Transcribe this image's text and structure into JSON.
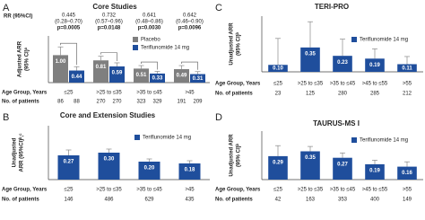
{
  "chart_data": [
    {
      "type": "bar",
      "panel": "A",
      "title": "Core Studies",
      "y_label": [
        "Adjusted ARR",
        "(95% CI)ᵃ"
      ],
      "annotation_label": "RR (95%CI)",
      "annotations": [
        {
          "rr": "0.445",
          "ci": "(0.28–0.70)",
          "p": "p=0.0005"
        },
        {
          "rr": "0.732",
          "ci": "(0.57–0.96)",
          "p": "p=0.0148"
        },
        {
          "rr": "0.641",
          "ci": "(0.48–0.86)",
          "p": "p=0.0030"
        },
        {
          "rr": "0.642",
          "ci": "(0.46–0.90)",
          "p": "p=0.0096"
        }
      ],
      "row_labels": [
        "Age Group, Years",
        "No. of patients"
      ],
      "categories": [
        "≤25",
        ">25 to ≤35",
        ">35 to ≤45",
        ">45"
      ],
      "ylim": [
        0,
        1.7
      ],
      "series": [
        {
          "name": "Placebo",
          "color": "#7f7f7f",
          "values": [
            1.0,
            0.81,
            0.51,
            0.49
          ],
          "value_labels": [
            "1.00",
            "0.81",
            "0.51",
            "0.49"
          ],
          "ci_upper": [
            1.3,
            0.96,
            0.62,
            0.62
          ],
          "patients": [
            86,
            270,
            323,
            191
          ],
          "patients_color": "#333333"
        },
        {
          "name": "Teriflunomide 14 mg",
          "color": "#1f4e9c",
          "values": [
            0.44,
            0.59,
            0.33,
            0.31
          ],
          "value_labels": [
            "0.44",
            "0.59",
            "0.33",
            "0.31"
          ],
          "ci_upper": [
            0.58,
            0.72,
            0.41,
            0.4
          ],
          "patients": [
            88,
            270,
            329,
            209
          ],
          "patients_color": "#1f4e9c"
        }
      ]
    },
    {
      "type": "bar",
      "panel": "B",
      "title": "Core and Extension Studies",
      "y_label": [
        "Unadjusted",
        "ARR (95%CI)ᵇ,ᶜ"
      ],
      "row_labels": [
        "Age Group, Years",
        "No. of patients"
      ],
      "categories": [
        "≤25",
        ">25 to ≤35",
        ">35 to ≤45",
        ">45"
      ],
      "ylim": [
        0,
        0.6
      ],
      "series": [
        {
          "name": "Teriflunomide 14 mg",
          "color": "#1f4e9c",
          "values": [
            0.27,
            0.3,
            0.2,
            0.18
          ],
          "value_labels": [
            "0.27",
            "0.30",
            "0.20",
            "0.18"
          ],
          "ci_upper": [
            0.33,
            0.34,
            0.23,
            0.21
          ],
          "patients": [
            146,
            486,
            629,
            435
          ],
          "patients_color": "#333333"
        }
      ]
    },
    {
      "type": "bar",
      "panel": "C",
      "title": "TERI-PRO",
      "y_label": [
        "Unadjusted ARR",
        "(95% CI)ᵇ"
      ],
      "row_labels": [
        "Age Group, Years",
        "No. of patients"
      ],
      "categories": [
        "≤25",
        ">25 to ≤35",
        ">35 to ≤45",
        ">45 to ≤55",
        ">55"
      ],
      "ylim": [
        0,
        0.8
      ],
      "series": [
        {
          "name": "Teriflunomide 14 mg",
          "color": "#1f4e9c",
          "values": [
            0.1,
            0.35,
            0.23,
            0.19,
            0.11
          ],
          "value_labels": [
            "0.10",
            "0.35",
            "0.23",
            "0.19",
            "0.11"
          ],
          "ci_upper": [
            0.48,
            0.72,
            0.47,
            0.33,
            0.22
          ],
          "patients": [
            23,
            125,
            280,
            285,
            212
          ],
          "patients_color": "#333333"
        }
      ]
    },
    {
      "type": "bar",
      "panel": "D",
      "title": "TAURUS-MS I",
      "y_label": [
        "Unadjusted ARR",
        "(95% CI)ᵇ"
      ],
      "row_labels": [
        "Age Group, Years",
        "No. of patients"
      ],
      "categories": [
        "≤25",
        ">25 to ≤35",
        ">35 to ≤45",
        ">45 to ≤55",
        ">55"
      ],
      "ylim": [
        0,
        0.6
      ],
      "series": [
        {
          "name": "Teriflunomide 14 mg",
          "color": "#1f4e9c",
          "values": [
            0.29,
            0.35,
            0.27,
            0.19,
            0.16
          ],
          "value_labels": [
            "0.29",
            "0.35",
            "0.27",
            "0.19",
            "0.16"
          ],
          "ci_upper": [
            0.42,
            0.41,
            0.33,
            0.24,
            0.22
          ],
          "patients": [
            42,
            163,
            353,
            400,
            149
          ],
          "patients_color": "#333333"
        }
      ]
    }
  ]
}
